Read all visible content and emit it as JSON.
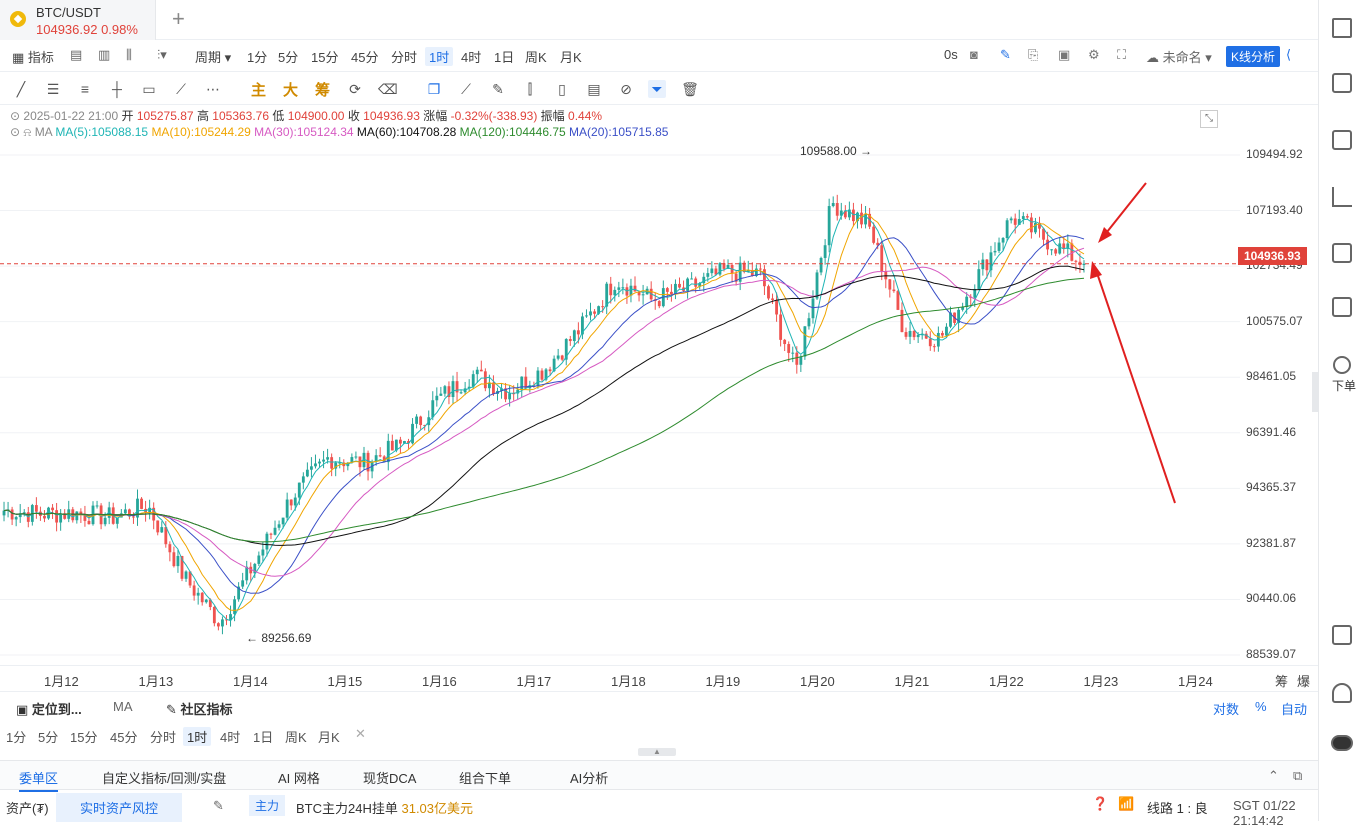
{
  "tab": {
    "symbol": "BTC/USDT",
    "price": "104936.92",
    "change": "0.98%"
  },
  "toolbar": {
    "indicator": "指标",
    "period": "周期",
    "timeframes": [
      "1分",
      "5分",
      "15分",
      "45分",
      "分时",
      "1时",
      "4时",
      "1日",
      "周K",
      "月K"
    ],
    "active_timeframe": "1时",
    "countdown": "0s",
    "layout_name": "未命名",
    "kline_analysis": "K线分析"
  },
  "drawing_tools": {
    "main": "主",
    "big": "大",
    "chip": "筹"
  },
  "ohlc": {
    "time": "2025-01-22 21:00",
    "open_label": "开",
    "open": "105275.87",
    "high_label": "高",
    "high": "105363.76",
    "low_label": "低",
    "low": "104900.00",
    "close_label": "收",
    "close": "104936.93",
    "change_label": "涨幅",
    "change": "-0.32%(-338.93)",
    "amp_label": "振幅",
    "amp": "0.44%"
  },
  "ma": {
    "label": "MA",
    "items": [
      {
        "text": "MA(5):105088.15",
        "color": "#1fb5b5"
      },
      {
        "text": "MA(10):105244.29",
        "color": "#f0a500"
      },
      {
        "text": "MA(30):105124.34",
        "color": "#d65ac2"
      },
      {
        "text": "MA(60):104708.28",
        "color": "#111111"
      },
      {
        "text": "MA(120):104446.75",
        "color": "#2e8b2e"
      },
      {
        "text": "MA(20):105715.85",
        "color": "#3a4fc7"
      }
    ]
  },
  "chart_data": {
    "type": "candlestick",
    "symbol": "BTC/USDT",
    "interval": "1时",
    "high_marker": "109588.00",
    "low_marker": "89256.69",
    "current_price": "104936.93",
    "y_ticks": [
      "109494.92",
      "107193.40",
      "102734.49",
      "100575.07",
      "98461.05",
      "96391.46",
      "94365.37",
      "92381.87",
      "90440.06",
      "88539.07"
    ],
    "x_ticks": [
      "1月12",
      "1月13",
      "1月14",
      "1月15",
      "1月16",
      "1月17",
      "1月18",
      "1月19",
      "1月20",
      "1月21",
      "1月22",
      "1月23",
      "1月24"
    ],
    "ylim": [
      88539.07,
      109494.92
    ],
    "close_path": [
      {
        "d": "1月12",
        "v": 94600
      },
      {
        "d": "1月12",
        "v": 94450
      },
      {
        "d": "1月13",
        "v": 94500
      },
      {
        "d": "1月13",
        "v": 94300
      },
      {
        "d": "1月13",
        "v": 94800
      },
      {
        "d": "1月14",
        "v": 91800
      },
      {
        "d": "1月14",
        "v": 89900
      },
      {
        "d": "1月14",
        "v": 92500
      },
      {
        "d": "1月15",
        "v": 95200
      },
      {
        "d": "1月15",
        "v": 96800
      },
      {
        "d": "1月15",
        "v": 96600
      },
      {
        "d": "1月16",
        "v": 97300
      },
      {
        "d": "1月16",
        "v": 99200
      },
      {
        "d": "1月16",
        "v": 100300
      },
      {
        "d": "1月17",
        "v": 99600
      },
      {
        "d": "1月17",
        "v": 100500
      },
      {
        "d": "1月17",
        "v": 102200
      },
      {
        "d": "1月18",
        "v": 104300
      },
      {
        "d": "1月18",
        "v": 103400
      },
      {
        "d": "1月19",
        "v": 103900
      },
      {
        "d": "1月19",
        "v": 104600
      },
      {
        "d": "1月20",
        "v": 104500
      },
      {
        "d": "1月20",
        "v": 100400
      },
      {
        "d": "1月20",
        "v": 107500
      },
      {
        "d": "1月21",
        "v": 106600
      },
      {
        "d": "1月21",
        "v": 102200
      },
      {
        "d": "1月21",
        "v": 101800
      },
      {
        "d": "1月22",
        "v": 104300
      },
      {
        "d": "1月22",
        "v": 106900
      },
      {
        "d": "1月22",
        "v": 105900
      },
      {
        "d": "1月22",
        "v": 104936.93
      }
    ]
  },
  "axis_extra": {
    "chips": "筹",
    "burst": "爆"
  },
  "subpanel": {
    "locate": "定位到...",
    "ma": "MA",
    "community": "社区指标",
    "log": "对数",
    "percent": "%",
    "auto": "自动",
    "timeframes": [
      "1分",
      "5分",
      "15分",
      "45分",
      "分时",
      "1时",
      "4时",
      "1日",
      "周K",
      "月K"
    ],
    "active_timeframe": "1时"
  },
  "bottom_tabs": [
    "委单区",
    "自定义指标/回测/实盘",
    "AI 网格",
    "现货DCA",
    "组合下单",
    "AI分析"
  ],
  "active_bottom_tab": "委单区",
  "status": {
    "assets": "资产(₮)",
    "risk": "实时资产风控",
    "main": "主力",
    "main_text": "BTC主力24H挂单",
    "main_value": "31.03亿美元",
    "line": "线路 1 : 良",
    "time": "SGT 01/22 21:14:42"
  },
  "sidebar": {
    "order": "下单"
  }
}
